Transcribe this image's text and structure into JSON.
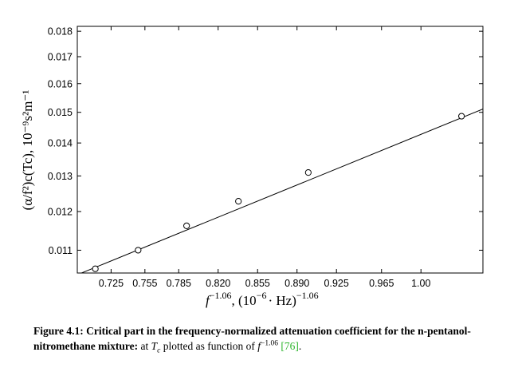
{
  "chart_data": {
    "type": "scatter",
    "title": "",
    "xlabel": {
      "base": "f",
      "exp1": "−1.06",
      "sep": ", (10",
      "exp2": "−6",
      "unit": "· Hz)",
      "exp3": "−1.06"
    },
    "ylabel": "(α/f²)c(Tc), 10⁻⁹s²m⁻¹",
    "y_scale": "log",
    "xlim": [
      0.695,
      1.055
    ],
    "ylim": [
      0.01045,
      0.0182
    ],
    "x_ticks": [
      "0.725",
      "0.755",
      "0.785",
      "0.820",
      "0.855",
      "0.890",
      "0.925",
      "0.965",
      "1.00"
    ],
    "x_tick_values": [
      0.725,
      0.755,
      0.785,
      0.82,
      0.855,
      0.89,
      0.925,
      0.965,
      1.0
    ],
    "y_ticks": [
      "0.011",
      "0.012",
      "0.013",
      "0.014",
      "0.015",
      "0.016",
      "0.017",
      "0.018"
    ],
    "y_tick_values": [
      0.011,
      0.012,
      0.013,
      0.014,
      0.015,
      0.016,
      0.017,
      0.018
    ],
    "grid": false,
    "legend": "none",
    "series": [
      {
        "marker": "open-circle",
        "x": [
          0.711,
          0.749,
          0.792,
          0.838,
          0.9,
          1.036
        ],
        "y": [
          0.01055,
          0.011,
          0.01162,
          0.01228,
          0.0131,
          0.01487
        ]
      }
    ],
    "fit_line": {
      "x": [
        0.695,
        1.055
      ],
      "y": [
        0.01041,
        0.01511
      ]
    }
  },
  "caption": {
    "label": "Figure 4.1:",
    "bold_text": "Critical part in the frequency-normalized attenuation coefficient for the n-pentanol-nitromethane mixture:",
    "text1": "at",
    "tc_T": "T",
    "tc_c": "c",
    "text2": "plotted as function of",
    "f": "f",
    "exp": "−1.06",
    "ref": "[76]",
    "end": "."
  }
}
